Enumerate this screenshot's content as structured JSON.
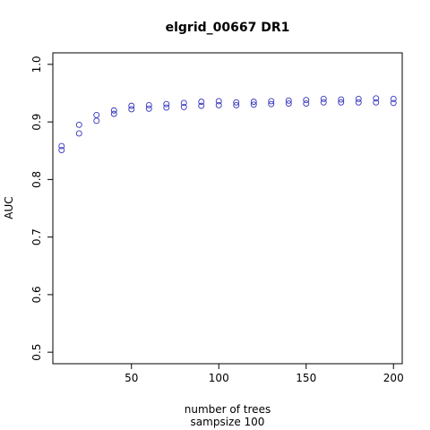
{
  "chart_data": {
    "type": "scatter",
    "title": "elgrid_00667 DR1",
    "xlabel": "number of trees",
    "xlabel2": "sampsize 100",
    "ylabel": "AUC",
    "xlim": [
      5,
      205
    ],
    "ylim": [
      0.48,
      1.02
    ],
    "xticks": [
      50,
      100,
      150,
      200
    ],
    "yticks": [
      0.5,
      0.6,
      0.7,
      0.8,
      0.9,
      1.0
    ],
    "ytick_labels": [
      "0.5",
      "0.6",
      "0.7",
      "0.8",
      "0.9",
      "1.0"
    ],
    "grid": false,
    "series": [
      {
        "color": "#3333bb",
        "points": [
          [
            10,
            0.858
          ],
          [
            20,
            0.895
          ],
          [
            30,
            0.912
          ],
          [
            40,
            0.92
          ],
          [
            50,
            0.928
          ],
          [
            60,
            0.929
          ],
          [
            70,
            0.931
          ],
          [
            80,
            0.933
          ],
          [
            90,
            0.935
          ],
          [
            100,
            0.936
          ],
          [
            110,
            0.934
          ],
          [
            120,
            0.935
          ],
          [
            130,
            0.936
          ],
          [
            140,
            0.937
          ],
          [
            150,
            0.938
          ],
          [
            160,
            0.94
          ],
          [
            170,
            0.939
          ],
          [
            180,
            0.94
          ],
          [
            190,
            0.941
          ],
          [
            200,
            0.94
          ]
        ]
      },
      {
        "color": "#3333bb",
        "points": [
          [
            10,
            0.851
          ],
          [
            20,
            0.88
          ],
          [
            30,
            0.902
          ],
          [
            40,
            0.914
          ],
          [
            50,
            0.922
          ],
          [
            60,
            0.923
          ],
          [
            70,
            0.925
          ],
          [
            80,
            0.926
          ],
          [
            90,
            0.928
          ],
          [
            100,
            0.929
          ],
          [
            110,
            0.929
          ],
          [
            120,
            0.93
          ],
          [
            130,
            0.931
          ],
          [
            140,
            0.932
          ],
          [
            150,
            0.932
          ],
          [
            160,
            0.934
          ],
          [
            170,
            0.934
          ],
          [
            180,
            0.934
          ],
          [
            190,
            0.934
          ],
          [
            200,
            0.933
          ]
        ]
      }
    ]
  }
}
